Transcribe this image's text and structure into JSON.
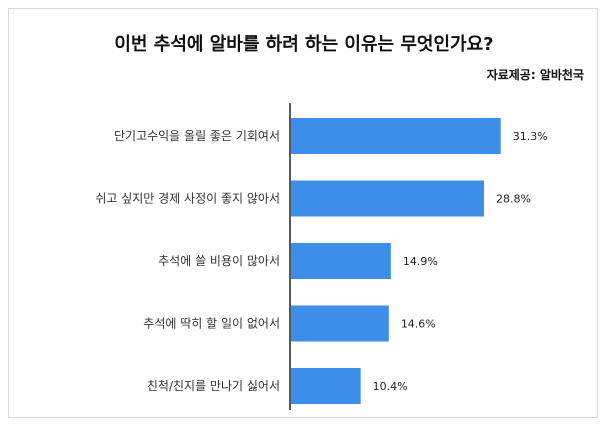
{
  "source_label": "자료제공: 알바천국",
  "chart_data": {
    "type": "bar",
    "orientation": "horizontal",
    "title": "이번 추석에 알바를 하려 하는 이유는 무엇인가요?",
    "categories": [
      "단기고수익을 올릴 좋은 기회여서",
      "쉬고 싶지만 경제 사정이 좋지 않아서",
      "추석에 쓸 비용이 많아서",
      "추석에 딱히 할 일이 없어서",
      "친척/친지를 만나기 싫어서"
    ],
    "values": [
      31.3,
      28.8,
      14.9,
      14.6,
      10.4
    ],
    "value_labels": [
      "31.3%",
      "28.8%",
      "14.9%",
      "14.6%",
      "10.4%"
    ],
    "xlim": [
      0,
      40
    ],
    "bar_color": "#3d8ee8",
    "grid": false,
    "legend": "none"
  }
}
